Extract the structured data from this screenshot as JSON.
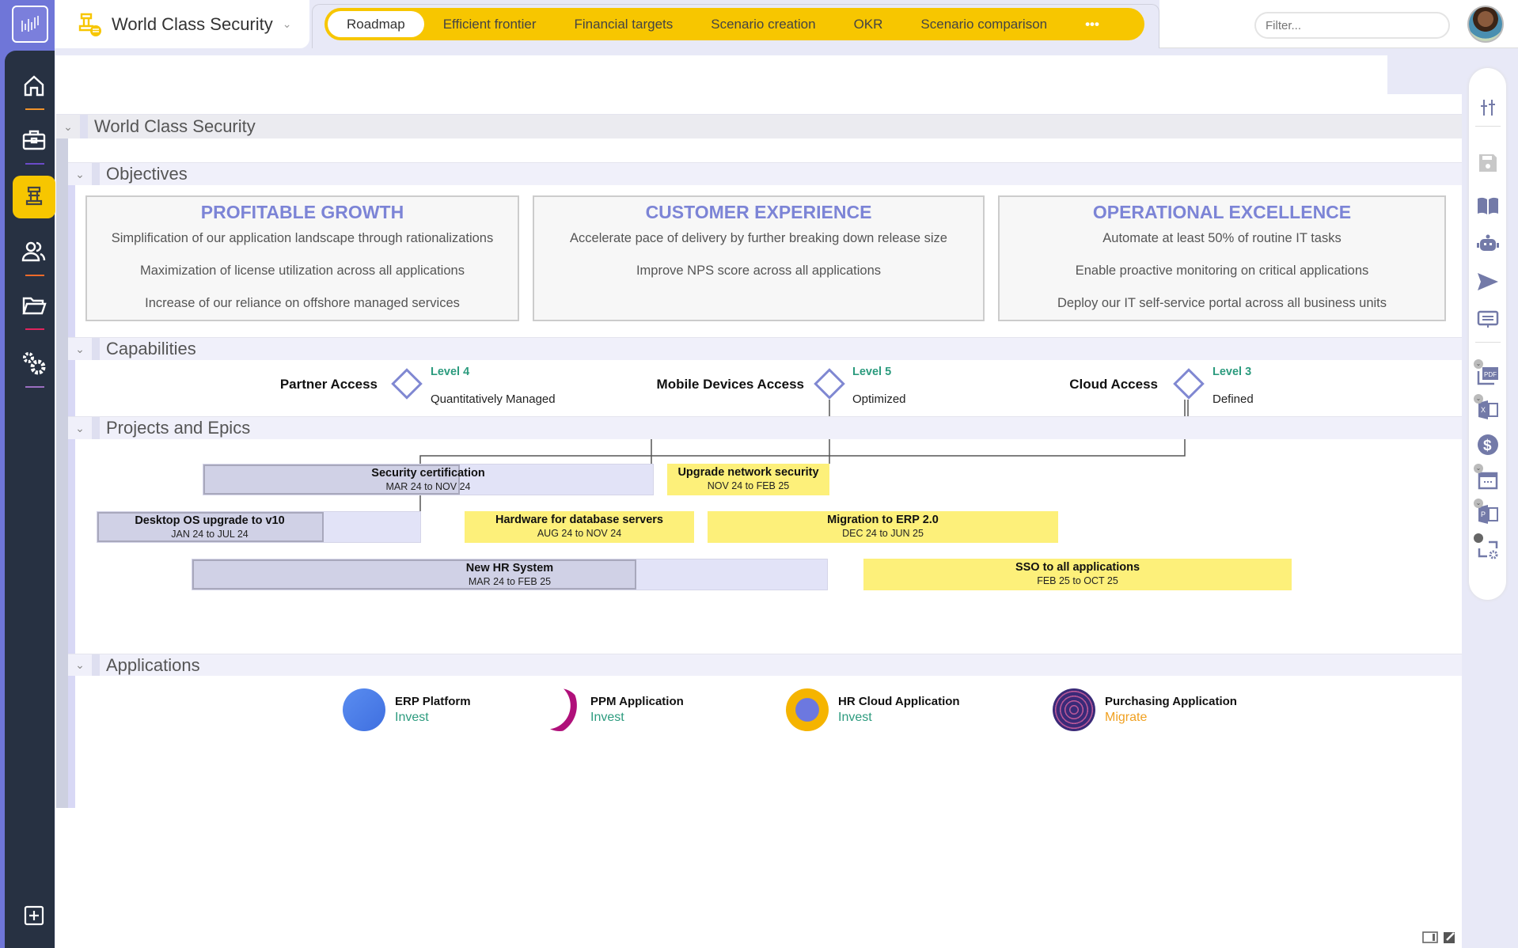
{
  "header": {
    "title": "World Class Security",
    "filter_placeholder": "Filter...",
    "tabs": [
      {
        "label": "Roadmap",
        "active": true
      },
      {
        "label": "Efficient frontier"
      },
      {
        "label": "Financial targets"
      },
      {
        "label": "Scenario creation"
      },
      {
        "label": "OKR"
      },
      {
        "label": "Scenario comparison"
      },
      {
        "label": "•••"
      }
    ]
  },
  "sidebar": {
    "items": [
      {
        "icon": "home-icon",
        "underline": "#f0922b"
      },
      {
        "icon": "briefcase-icon",
        "underline": "#6b4bc8"
      },
      {
        "icon": "chess-icon",
        "active": true
      },
      {
        "icon": "users-icon",
        "underline": "#ee6a2a"
      },
      {
        "icon": "folder-icon",
        "underline": "#e0245e"
      },
      {
        "icon": "gears-icon",
        "underline": "#9b6ec0"
      }
    ],
    "bottom_icon": "plus-square-icon"
  },
  "colors": {
    "accent": "#f7c600",
    "sidebar": "#273142",
    "heading": "#7c84d6",
    "level": "#2c9b7e",
    "invest": "#2c9b7e",
    "migrate": "#f0a020",
    "bar_yellow": "#fdf07a"
  },
  "root": {
    "label": "World Class Security"
  },
  "objectives": {
    "label": "Objectives",
    "cards": [
      {
        "title": "PROFITABLE GROWTH",
        "items": [
          "Simplification of our application landscape through rationalizations",
          "Maximization of license utilization across all applications",
          "Increase of our reliance on offshore managed services"
        ]
      },
      {
        "title": "CUSTOMER EXPERIENCE",
        "items": [
          "Accelerate pace of delivery by further breaking down release size",
          "Improve NPS score across all applications"
        ]
      },
      {
        "title": "OPERATIONAL EXCELLENCE",
        "items": [
          "Automate at least 50% of routine IT tasks",
          "Enable proactive monitoring on critical applications",
          "Deploy our IT self-service portal across all business units"
        ]
      }
    ]
  },
  "capabilities": {
    "label": "Capabilities",
    "items": [
      {
        "name": "Partner Access",
        "level": "Level 4",
        "desc": "Quantitatively Managed"
      },
      {
        "name": "Mobile Devices Access",
        "level": "Level 5",
        "desc": "Optimized"
      },
      {
        "name": "Cloud Access",
        "level": "Level 3",
        "desc": "Defined"
      }
    ]
  },
  "projects": {
    "label": "Projects and Epics",
    "items": [
      {
        "name": "Security certification",
        "dates": "MAR 24 to NOV 24",
        "progress": 0.57
      },
      {
        "name": "Upgrade network security",
        "dates": "NOV 24 to FEB 25"
      },
      {
        "name": "Desktop OS upgrade to v10",
        "dates": "JAN 24 to JUL 24",
        "progress": 0.7
      },
      {
        "name": "Hardware for database servers",
        "dates": "AUG 24 to NOV 24"
      },
      {
        "name": "Migration to ERP 2.0",
        "dates": "DEC 24 to JUN 25"
      },
      {
        "name": "New HR System",
        "dates": "MAR 24 to FEB 25",
        "progress": 0.7
      },
      {
        "name": "SSO to all applications",
        "dates": "FEB 25 to OCT 25"
      }
    ]
  },
  "applications": {
    "label": "Applications",
    "items": [
      {
        "name": "ERP Platform",
        "status": "Invest"
      },
      {
        "name": "PPM Application",
        "status": "Invest"
      },
      {
        "name": "HR Cloud Application",
        "status": "Invest"
      },
      {
        "name": "Purchasing Application",
        "status": "Migrate"
      }
    ]
  },
  "right_toolbar": [
    "sliders-icon",
    "save-icon",
    "book-icon",
    "robot-icon",
    "send-icon",
    "presentation-icon",
    "pdf-icon",
    "excel-icon",
    "dollar-icon",
    "calendar-icon",
    "powerpoint-icon",
    "workflow-settings-icon"
  ],
  "footer_icons": [
    "panel-toggle-icon",
    "edit-icon"
  ]
}
